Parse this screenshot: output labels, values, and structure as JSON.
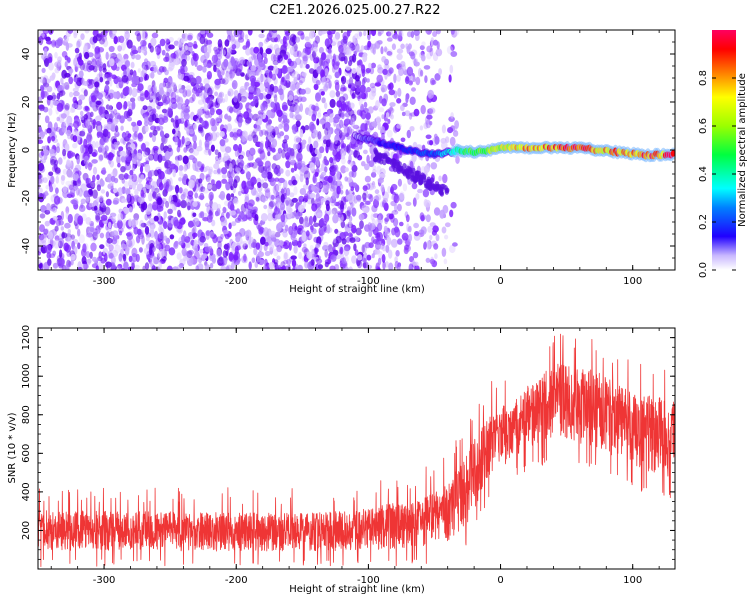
{
  "title": "C2E1.2026.025.00.27.R22",
  "chart_data": [
    {
      "type": "heatmap",
      "name": "spectrogram",
      "xlabel": "Height of straight line (km)",
      "ylabel": "Frequency (Hz)",
      "xlim": [
        -350,
        132
      ],
      "ylim": [
        -50,
        50
      ],
      "xticks": [
        -300,
        -200,
        -100,
        0,
        100
      ],
      "yticks": [
        -40,
        -20,
        0,
        20,
        40
      ],
      "colorbar": {
        "label": "Normalized spectral amplitude",
        "range": [
          0,
          1
        ],
        "ticks": [
          0,
          0.2,
          0.4,
          0.6,
          0.8
        ],
        "tick_labels": [
          "0.0",
          "0.2",
          "0.4",
          "0.6",
          "0.8"
        ],
        "colormap": "rainbow"
      },
      "noise_region": {
        "x_from": -350,
        "x_to": -40,
        "freq_from": -50,
        "freq_to": 50,
        "amplitude": 0.1
      },
      "signal_trace": [
        {
          "x": -110,
          "freq": 6,
          "amplitude": 0.08
        },
        {
          "x": -90,
          "freq": 3,
          "amplitude": 0.15
        },
        {
          "x": -70,
          "freq": 0,
          "amplitude": 0.2
        },
        {
          "x": -50,
          "freq": -2,
          "amplitude": 0.25
        },
        {
          "x": -40,
          "freq": -1,
          "amplitude": 0.35
        },
        {
          "x": -30,
          "freq": 0,
          "amplitude": 0.5
        },
        {
          "x": -20,
          "freq": -1,
          "amplitude": 0.55
        },
        {
          "x": 0,
          "freq": 1,
          "amplitude": 0.7
        },
        {
          "x": 20,
          "freq": 1,
          "amplitude": 0.85
        },
        {
          "x": 40,
          "freq": 1,
          "amplitude": 0.9
        },
        {
          "x": 55,
          "freq": 1,
          "amplitude": 1.0
        },
        {
          "x": 75,
          "freq": 0,
          "amplitude": 0.85
        },
        {
          "x": 90,
          "freq": -1,
          "amplitude": 0.9
        },
        {
          "x": 110,
          "freq": -2,
          "amplitude": 0.95
        },
        {
          "x": 132,
          "freq": -2,
          "amplitude": 0.95
        }
      ]
    },
    {
      "type": "line",
      "name": "snr",
      "xlabel": "Height of straight line (km)",
      "ylabel": "SNR (10 * v/v)",
      "xlim": [
        -350,
        132
      ],
      "ylim": [
        0,
        1250
      ],
      "xticks": [
        -300,
        -200,
        -100,
        0,
        100
      ],
      "yticks": [
        200,
        400,
        600,
        800,
        1000,
        1200
      ],
      "color": "#ef3535",
      "profile": [
        {
          "x": -350,
          "snr_low": 50,
          "snr_high": 350
        },
        {
          "x": -250,
          "snr_low": 50,
          "snr_high": 340
        },
        {
          "x": -150,
          "snr_low": 50,
          "snr_high": 330
        },
        {
          "x": -100,
          "snr_low": 50,
          "snr_high": 360
        },
        {
          "x": -60,
          "snr_low": 60,
          "snr_high": 430
        },
        {
          "x": -40,
          "snr_low": 70,
          "snr_high": 500
        },
        {
          "x": -25,
          "snr_low": 150,
          "snr_high": 700
        },
        {
          "x": -10,
          "snr_low": 380,
          "snr_high": 870
        },
        {
          "x": 10,
          "snr_low": 520,
          "snr_high": 950
        },
        {
          "x": 40,
          "snr_low": 600,
          "snr_high": 1150
        },
        {
          "x": 70,
          "snr_low": 550,
          "snr_high": 1120
        },
        {
          "x": 100,
          "snr_low": 450,
          "snr_high": 1000
        },
        {
          "x": 132,
          "snr_low": 380,
          "snr_high": 960
        }
      ]
    }
  ]
}
